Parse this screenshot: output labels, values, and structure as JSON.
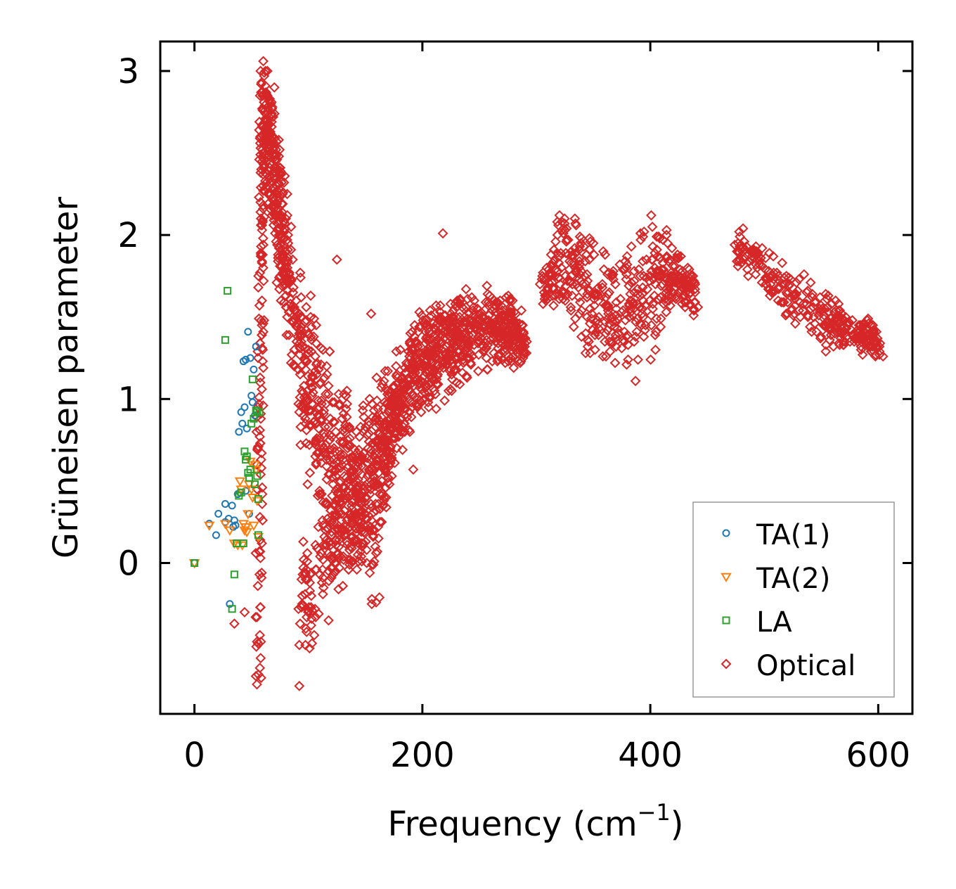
{
  "chart_data": {
    "type": "scatter",
    "title": "",
    "xlabel": "Frequency (cm",
    "xlabel_sup": "−1",
    "xlabel_end": ")",
    "ylabel": "Grüneisen parameter",
    "xlim": [
      -30,
      630
    ],
    "ylim": [
      -0.92,
      3.18
    ],
    "xticks": [
      0,
      200,
      400,
      600
    ],
    "xtick_labels": [
      "0",
      "200",
      "400",
      "600"
    ],
    "yticks": [
      0,
      1,
      2,
      3
    ],
    "ytick_labels": [
      "0",
      "1",
      "2",
      "3"
    ],
    "grid": false,
    "legend_position": "lower-right",
    "series": [
      {
        "name": "TA(1)",
        "color": "#1f77b4",
        "marker": "circle",
        "points": [
          [
            0,
            0
          ],
          [
            13,
            0.24
          ],
          [
            19,
            0.17
          ],
          [
            21,
            0.3
          ],
          [
            27,
            0.25
          ],
          [
            27,
            0.36
          ],
          [
            30,
            0.27
          ],
          [
            33,
            0.35
          ],
          [
            34,
            0.22
          ],
          [
            35,
            0.26
          ],
          [
            36,
            0.23
          ],
          [
            38,
            0.42
          ],
          [
            39,
            0.8
          ],
          [
            40,
            0.43
          ],
          [
            41,
            0.92
          ],
          [
            42,
            0.85
          ],
          [
            43,
            1.23
          ],
          [
            44,
            0.95
          ],
          [
            45,
            1.24
          ],
          [
            46,
            0.82
          ],
          [
            47,
            1.41
          ],
          [
            48,
            0.3
          ],
          [
            49,
            1.25
          ],
          [
            50,
            1.02
          ],
          [
            51,
            0.98
          ],
          [
            52,
            1.18
          ],
          [
            53,
            0.9
          ],
          [
            54,
            1.32
          ],
          [
            31,
            -0.25
          ],
          [
            45,
            0.44
          ]
        ]
      },
      {
        "name": "TA(2)",
        "color": "#ff7f0e",
        "marker": "triangle-down",
        "points": [
          [
            0,
            0
          ],
          [
            13,
            0.23
          ],
          [
            27,
            0.24
          ],
          [
            31,
            0.2
          ],
          [
            35,
            0.12
          ],
          [
            38,
            0.11
          ],
          [
            40,
            0.5
          ],
          [
            41,
            0.45
          ],
          [
            42,
            0.11
          ],
          [
            43,
            0.24
          ],
          [
            44,
            0.2
          ],
          [
            45,
            0.22
          ],
          [
            46,
            0.19
          ],
          [
            47,
            0.3
          ],
          [
            48,
            0.48
          ],
          [
            49,
            0.62
          ],
          [
            50,
            0.45
          ],
          [
            51,
            0.4
          ],
          [
            52,
            0.23
          ],
          [
            53,
            0.6
          ],
          [
            54,
            0.57
          ],
          [
            55,
            0.38
          ],
          [
            56,
            0.16
          ]
        ]
      },
      {
        "name": "LA",
        "color": "#2ca02c",
        "marker": "square",
        "points": [
          [
            0,
            0
          ],
          [
            27,
            1.36
          ],
          [
            29,
            1.66
          ],
          [
            33,
            -0.28
          ],
          [
            35,
            -0.07
          ],
          [
            37,
            0.12
          ],
          [
            39,
            0.41
          ],
          [
            41,
            0.43
          ],
          [
            43,
            0.12
          ],
          [
            44,
            0.68
          ],
          [
            45,
            0.63
          ],
          [
            46,
            0.65
          ],
          [
            47,
            0.55
          ],
          [
            48,
            0.52
          ],
          [
            49,
            0.57
          ],
          [
            50,
            0.85
          ],
          [
            51,
            1.12
          ],
          [
            52,
            0.88
          ],
          [
            53,
            0.48
          ],
          [
            54,
            0.93
          ],
          [
            55,
            0.92
          ],
          [
            55,
            0.53
          ],
          [
            56,
            0.39
          ],
          [
            56,
            0.17
          ],
          [
            57,
            0.92
          ]
        ]
      },
      {
        "name": "Optical",
        "color": "#d62728",
        "marker": "diamond",
        "points": []
      }
    ]
  }
}
